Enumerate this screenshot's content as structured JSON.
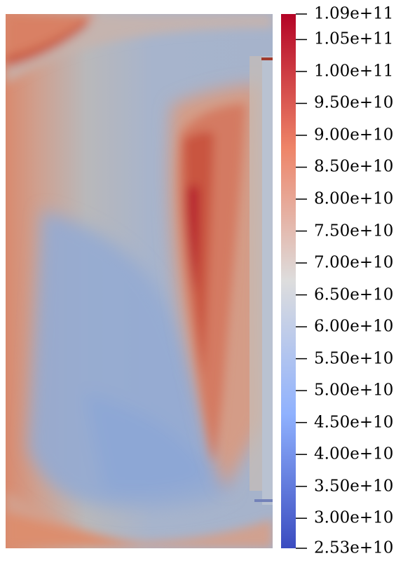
{
  "colorbar": {
    "min": 25300000000.0,
    "max": 109000000000.0,
    "colormap": "cool-to-warm",
    "colors": {
      "low": "#3b4cc0",
      "mid": "#dddddd",
      "high": "#b40426"
    },
    "tick_labels": [
      "1.09e+11",
      "1.05e+11",
      "1.00e+11",
      "9.50e+10",
      "9.00e+10",
      "8.50e+10",
      "8.00e+10",
      "7.50e+10",
      "7.00e+10",
      "6.50e+10",
      "6.00e+10",
      "5.50e+10",
      "5.00e+10",
      "4.50e+10",
      "4.00e+10",
      "3.50e+10",
      "3.00e+10",
      "2.53e+10"
    ],
    "tick_values": [
      109000000000.0,
      105000000000.0,
      100000000000.0,
      95000000000.0,
      90000000000.0,
      85000000000.0,
      80000000000.0,
      75000000000.0,
      70000000000.0,
      65000000000.0,
      60000000000.0,
      55000000000.0,
      50000000000.0,
      45000000000.0,
      40000000000.0,
      35000000000.0,
      30000000000.0,
      25300000000.0
    ]
  }
}
